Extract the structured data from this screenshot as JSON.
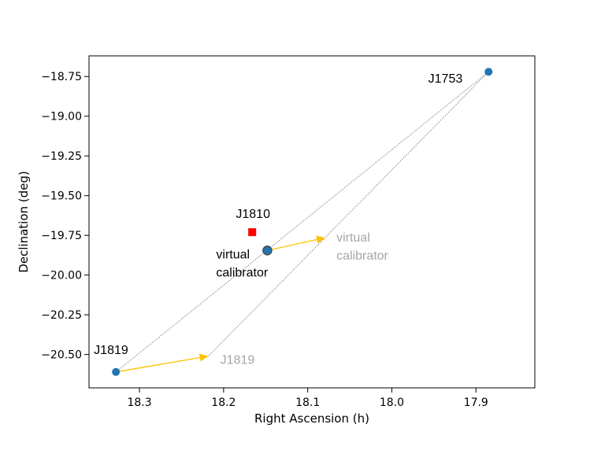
{
  "chart_data": {
    "type": "scatter",
    "xlabel": "Right Ascension (h)",
    "ylabel": "Declination (deg)",
    "xlim": [
      18.36,
      17.83
    ],
    "ylim": [
      -20.71,
      -18.62
    ],
    "x_inverted": true,
    "xticks": [
      18.3,
      18.2,
      18.1,
      18.0,
      17.9
    ],
    "xtick_labels": [
      "18.3",
      "18.2",
      "18.1",
      "18.0",
      "17.9"
    ],
    "yticks": [
      -18.75,
      -19.0,
      -19.25,
      -19.5,
      -19.75,
      -20.0,
      -20.25,
      -20.5
    ],
    "ytick_labels": [
      "−18.75",
      "−19.00",
      "−19.25",
      "−19.50",
      "−19.75",
      "−20.00",
      "−20.25",
      "−20.50"
    ],
    "grid": false,
    "points": [
      {
        "name": "J1753",
        "label": "J1753",
        "x": 17.885,
        "y": -18.72,
        "marker": "circle",
        "color": "#1f77b4"
      },
      {
        "name": "J1819",
        "label": "J1819",
        "x": 18.328,
        "y": -20.61,
        "marker": "circle",
        "color": "#1f77b4"
      },
      {
        "name": "virtual-calibrator",
        "label": [
          "virtual",
          "calibrator"
        ],
        "x": 18.148,
        "y": -19.845,
        "marker": "circle-edged",
        "color": "#1f77b4",
        "edge_color": "#4a4a4a"
      },
      {
        "name": "J1810",
        "label": "J1810",
        "x": 18.166,
        "y": -19.73,
        "marker": "square",
        "color": "#ff0000"
      }
    ],
    "arrows": [
      {
        "name": "j1819-shift",
        "from": [
          18.328,
          -20.61
        ],
        "to": [
          18.218,
          -20.51
        ],
        "color": "#ffc000"
      },
      {
        "name": "virtual-calibrator-shift",
        "from": [
          18.148,
          -19.845
        ],
        "to": [
          18.079,
          -19.765
        ],
        "color": "#ffc000"
      }
    ],
    "shifted_labels": [
      {
        "name": "j1819-shifted",
        "text": "J1819",
        "x": 18.218,
        "y": -20.51,
        "color": "#a6a6a6"
      },
      {
        "name": "virtual-calibrator-shifted",
        "text": [
          "virtual",
          "calibrator"
        ],
        "x": 18.079,
        "y": -19.765,
        "color": "#a6a6a6"
      }
    ],
    "dotted_lines": [
      {
        "name": "j1819-to-j1753",
        "from": [
          18.328,
          -20.61
        ],
        "to": [
          17.885,
          -18.72
        ]
      },
      {
        "name": "j1819-shifted-to-j1753",
        "from": [
          18.218,
          -20.51
        ],
        "to": [
          17.885,
          -18.72
        ]
      }
    ]
  }
}
